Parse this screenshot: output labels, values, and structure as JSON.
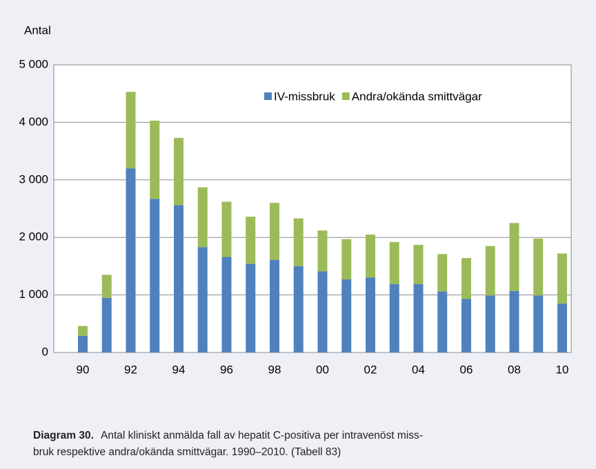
{
  "chart_data": {
    "type": "stacked_bar",
    "y_axis_label": "Antal",
    "categories": [
      "90",
      null,
      "92",
      null,
      "94",
      null,
      "96",
      null,
      "98",
      null,
      "00",
      null,
      "02",
      null,
      "04",
      null,
      "06",
      null,
      "08",
      null,
      "10"
    ],
    "series": [
      {
        "name": "IV-missbruk",
        "color": "#4f81bd",
        "values": [
          290,
          950,
          3200,
          2670,
          2560,
          1830,
          1660,
          1540,
          1610,
          1500,
          1410,
          1270,
          1300,
          1190,
          1190,
          1060,
          930,
          990,
          1070,
          990,
          850
        ]
      },
      {
        "name": "Andra/okända smittvägar",
        "color": "#9bbb59",
        "values": [
          170,
          400,
          1330,
          1360,
          1170,
          1040,
          960,
          820,
          990,
          830,
          710,
          700,
          750,
          730,
          680,
          650,
          710,
          860,
          1180,
          990,
          870
        ]
      }
    ],
    "ylim": [
      0,
      5000
    ],
    "yticks": [
      0,
      {
        "value": 1000,
        "label": "1 000"
      },
      {
        "value": 2000,
        "label": "2 000"
      },
      {
        "value": 3000,
        "label": "3 000"
      },
      {
        "value": 4000,
        "label": "4 000"
      },
      {
        "value": 5000,
        "label": "5 000"
      }
    ],
    "grid": true,
    "legend": "top",
    "caption": {
      "label": "Diagram 30.",
      "lines": [
        "Antal kliniskt anmälda fall av hepatit C-positiva per intravenöst miss-",
        "bruk respektive andra/okända smittvägar. 1990–2010. (Tabell 83)"
      ]
    }
  }
}
